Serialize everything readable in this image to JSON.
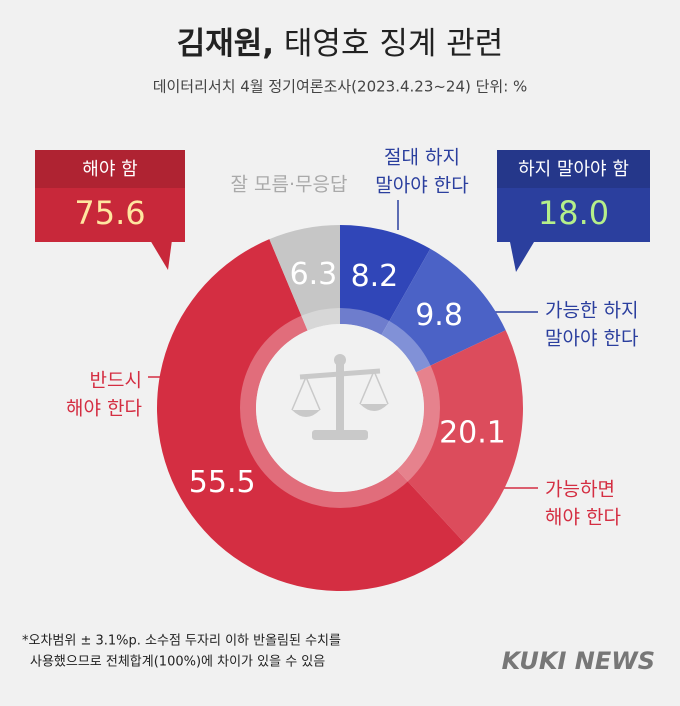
{
  "chart_data": {
    "type": "donut",
    "title": "김재원, 태영호 징계 관련",
    "subtitle": "데이터리서치 4월 정기여론조사(2023.4.23~24) 단위: %",
    "categories": [
      [
        "절대 하지",
        "말아야 한다"
      ],
      [
        "가능한 하지",
        "말아야 한다"
      ],
      [
        "가능하면",
        "해야 한다"
      ],
      [
        "반드시",
        "해야 한다"
      ],
      [
        "잘 모름·무응답"
      ]
    ],
    "values": [
      8.2,
      9.8,
      20.1,
      55.5,
      6.3
    ],
    "colors": [
      "#3046b8",
      "#4b62c6",
      "#dc4c5c",
      "#d42e42",
      "#c6c6c6"
    ],
    "groups": {
      "names": [
        "해야 함",
        "하지 말아야 함"
      ],
      "values": [
        75.6,
        18
      ],
      "value_labels": [
        "75.6",
        "18.0"
      ],
      "colors": [
        "#c8283a",
        "#2b3f9e"
      ]
    },
    "footnote": [
      "*오차범위 ± 3.1%p. 소수점 두자리 이하 반올림된 수치를",
      "사용했으므로 전체합계(100%)에 차이가 있을 수 있음"
    ],
    "brand": "KUKI NEWS"
  }
}
